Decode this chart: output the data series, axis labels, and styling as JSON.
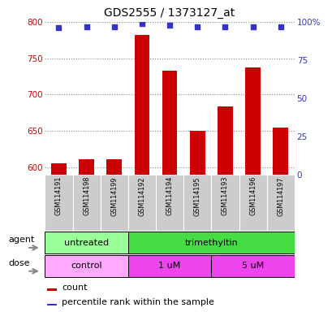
{
  "title": "GDS2555 / 1373127_at",
  "samples": [
    "GSM114191",
    "GSM114198",
    "GSM114199",
    "GSM114192",
    "GSM114194",
    "GSM114195",
    "GSM114193",
    "GSM114196",
    "GSM114197"
  ],
  "counts": [
    606,
    611,
    611,
    782,
    733,
    650,
    684,
    737,
    655
  ],
  "percentile_ranks": [
    96,
    97,
    97,
    99,
    98,
    97,
    97,
    97,
    97
  ],
  "ylim_left": [
    590,
    800
  ],
  "ylim_right": [
    0,
    100
  ],
  "yticks_left": [
    600,
    650,
    700,
    750,
    800
  ],
  "yticks_right": [
    0,
    25,
    50,
    75,
    100
  ],
  "right_tick_labels": [
    "0",
    "25",
    "50",
    "75",
    "100%"
  ],
  "bar_color": "#cc0000",
  "dot_color": "#3333cc",
  "agent_labels": [
    {
      "text": "untreated",
      "span": [
        0,
        3
      ],
      "color": "#99ff99"
    },
    {
      "text": "trimethyltin",
      "span": [
        3,
        9
      ],
      "color": "#44dd44"
    }
  ],
  "dose_labels": [
    {
      "text": "control",
      "span": [
        0,
        3
      ],
      "color": "#ffaaff"
    },
    {
      "text": "1 uM",
      "span": [
        3,
        6
      ],
      "color": "#ee44ee"
    },
    {
      "text": "5 uM",
      "span": [
        6,
        9
      ],
      "color": "#ee44ee"
    }
  ],
  "legend_count_color": "#cc0000",
  "legend_dot_color": "#3333cc",
  "grid_color": "#888888",
  "label_area_color": "#cccccc",
  "left_tick_color": "#cc0000",
  "right_tick_color": "#3333cc"
}
